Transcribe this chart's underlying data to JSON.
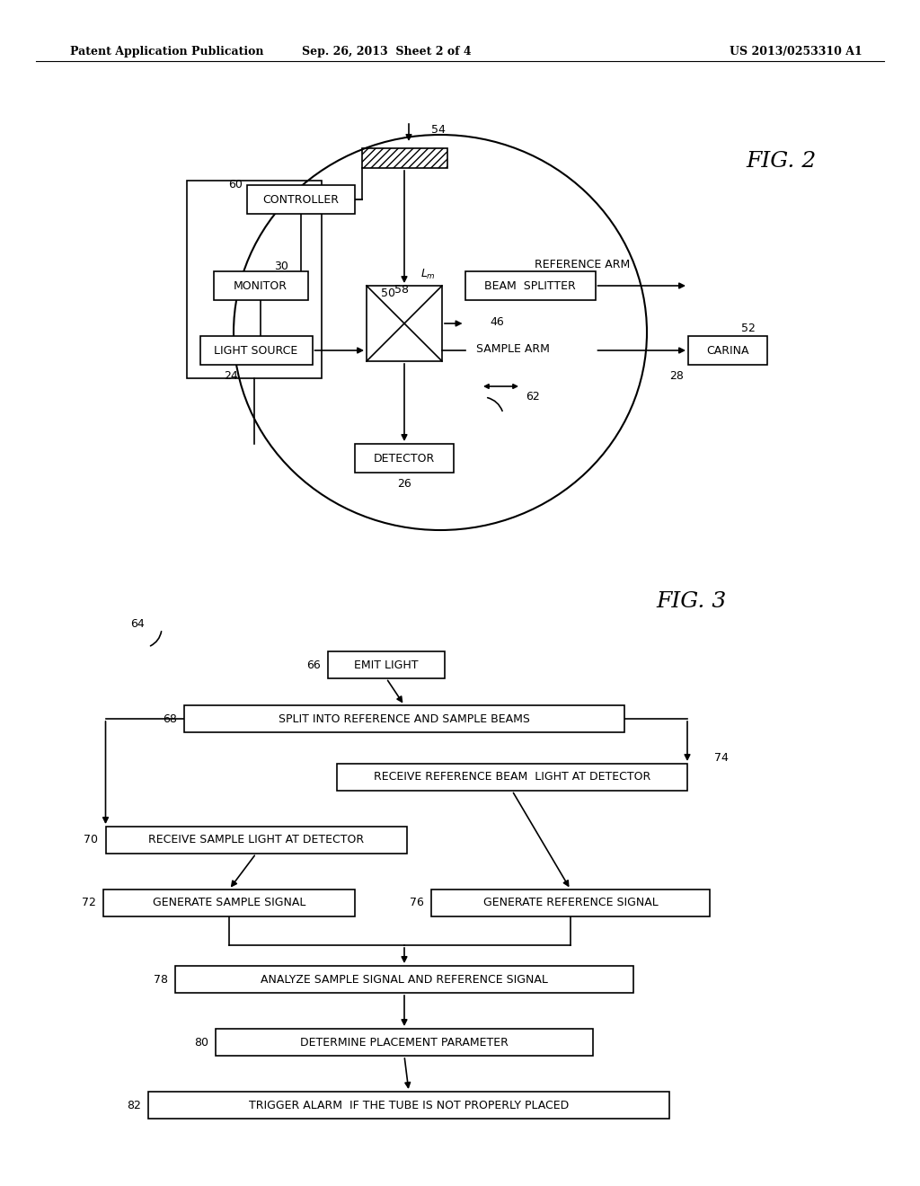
{
  "bg_color": "#ffffff",
  "header_left": "Patent Application Publication",
  "header_mid": "Sep. 26, 2013  Sheet 2 of 4",
  "header_right": "US 2013/0253310 A1",
  "fig2_label": "FIG. 2",
  "fig3_label": "FIG. 3"
}
